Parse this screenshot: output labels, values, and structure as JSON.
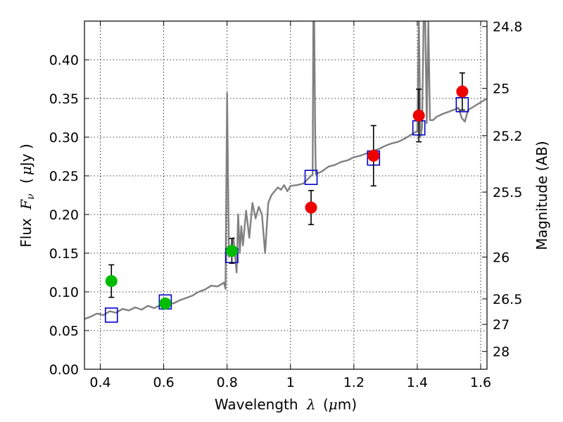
{
  "chart_data": {
    "type": "scatter",
    "title": "",
    "xlabel": {
      "prefix": "Wavelength",
      "symbol": "λ",
      "unit_open": "(",
      "unit_mu": "μ",
      "unit_rest": "m)"
    },
    "ylabel": {
      "prefix": "Flux",
      "symbol": "F",
      "subscript": "ν",
      "unit_open": "(",
      "unit_mu": "μ",
      "unit_rest": "Jy )"
    },
    "y2label": "Magnitude (AB)",
    "xlim": [
      0.35,
      1.62
    ],
    "ylim": [
      0.0,
      0.45
    ],
    "grid": true,
    "x_ticks": [
      {
        "value": 0.4,
        "label": "0.4"
      },
      {
        "value": 0.6,
        "label": "0.6"
      },
      {
        "value": 0.8,
        "label": "0.8"
      },
      {
        "value": 1.0,
        "label": "1"
      },
      {
        "value": 1.2,
        "label": "1.2"
      },
      {
        "value": 1.4,
        "label": "1.4"
      },
      {
        "value": 1.6,
        "label": "1.6"
      }
    ],
    "y_ticks": [
      {
        "value": 0.0,
        "label": "0.00"
      },
      {
        "value": 0.05,
        "label": "0.05"
      },
      {
        "value": 0.1,
        "label": "0.10"
      },
      {
        "value": 0.15,
        "label": "0.15"
      },
      {
        "value": 0.2,
        "label": "0.20"
      },
      {
        "value": 0.25,
        "label": "0.25"
      },
      {
        "value": 0.3,
        "label": "0.30"
      },
      {
        "value": 0.35,
        "label": "0.35"
      },
      {
        "value": 0.4,
        "label": "0.40"
      }
    ],
    "y2_ticks": [
      {
        "flux": 0.443,
        "label": "24.8"
      },
      {
        "flux": 0.363,
        "label": "25"
      },
      {
        "flux": 0.302,
        "label": "25.2"
      },
      {
        "flux": 0.229,
        "label": "25.5"
      },
      {
        "flux": 0.145,
        "label": "26"
      },
      {
        "flux": 0.091,
        "label": "26.5"
      },
      {
        "flux": 0.058,
        "label": "27"
      },
      {
        "flux": 0.023,
        "label": "28"
      }
    ],
    "series": [
      {
        "kind": "line",
        "color": "#808080",
        "x": [
          0.35,
          0.37,
          0.39,
          0.41,
          0.43,
          0.45,
          0.47,
          0.49,
          0.51,
          0.53,
          0.55,
          0.57,
          0.59,
          0.61,
          0.63,
          0.65,
          0.67,
          0.69,
          0.71,
          0.73,
          0.75,
          0.77,
          0.79,
          0.795,
          0.8,
          0.803,
          0.806,
          0.81,
          0.82,
          0.83,
          0.835,
          0.84,
          0.845,
          0.85,
          0.86,
          0.87,
          0.88,
          0.89,
          0.9,
          0.91,
          0.92,
          0.93,
          0.94,
          0.95,
          0.96,
          0.97,
          0.98,
          0.99,
          1.0,
          1.02,
          1.04,
          1.06,
          1.07,
          1.072,
          1.075,
          1.078,
          1.08,
          1.1,
          1.12,
          1.14,
          1.16,
          1.18,
          1.2,
          1.22,
          1.24,
          1.26,
          1.28,
          1.3,
          1.32,
          1.34,
          1.36,
          1.38,
          1.4,
          1.405,
          1.41,
          1.415,
          1.42,
          1.425,
          1.43,
          1.435,
          1.44,
          1.45,
          1.46,
          1.48,
          1.5,
          1.52,
          1.53,
          1.54,
          1.55,
          1.56,
          1.58,
          1.6,
          1.62
        ],
        "y": [
          0.065,
          0.068,
          0.072,
          0.07,
          0.075,
          0.073,
          0.078,
          0.076,
          0.08,
          0.077,
          0.082,
          0.079,
          0.083,
          0.087,
          0.085,
          0.089,
          0.092,
          0.095,
          0.1,
          0.103,
          0.108,
          0.107,
          0.112,
          0.104,
          0.357,
          0.25,
          0.145,
          0.15,
          0.17,
          0.125,
          0.2,
          0.15,
          0.185,
          0.16,
          0.205,
          0.17,
          0.215,
          0.195,
          0.21,
          0.2,
          0.15,
          0.215,
          0.225,
          0.23,
          0.235,
          0.232,
          0.238,
          0.23,
          0.237,
          0.238,
          0.24,
          0.248,
          0.252,
          0.45,
          0.45,
          0.3,
          0.252,
          0.256,
          0.262,
          0.264,
          0.268,
          0.27,
          0.274,
          0.276,
          0.279,
          0.282,
          0.285,
          0.289,
          0.292,
          0.294,
          0.298,
          0.303,
          0.308,
          0.45,
          0.3,
          0.312,
          0.45,
          0.45,
          0.318,
          0.45,
          0.322,
          0.322,
          0.326,
          0.33,
          0.333,
          0.336,
          0.338,
          0.325,
          0.32,
          0.335,
          0.34,
          0.345,
          0.35
        ]
      },
      {
        "kind": "markers",
        "marker": "square",
        "color": "#0000cc",
        "x": [
          0.435,
          0.605,
          0.815,
          1.065,
          1.262,
          1.405,
          1.542
        ],
        "y": [
          0.07,
          0.087,
          0.147,
          0.248,
          0.273,
          0.312,
          0.342
        ]
      },
      {
        "kind": "markers",
        "marker": "circle",
        "color": "#00bb00",
        "x": [
          0.435,
          0.605,
          0.815
        ],
        "y": [
          0.114,
          0.085,
          0.153
        ],
        "yerr": [
          0.021,
          0.004,
          0.016
        ]
      },
      {
        "kind": "markers",
        "marker": "circle",
        "color": "#ee0000",
        "x": [
          1.065,
          1.262,
          1.405,
          1.542
        ],
        "y": [
          0.209,
          0.276,
          0.328,
          0.359
        ],
        "yerr": [
          0.022,
          0.039,
          0.034,
          0.024
        ]
      }
    ]
  }
}
